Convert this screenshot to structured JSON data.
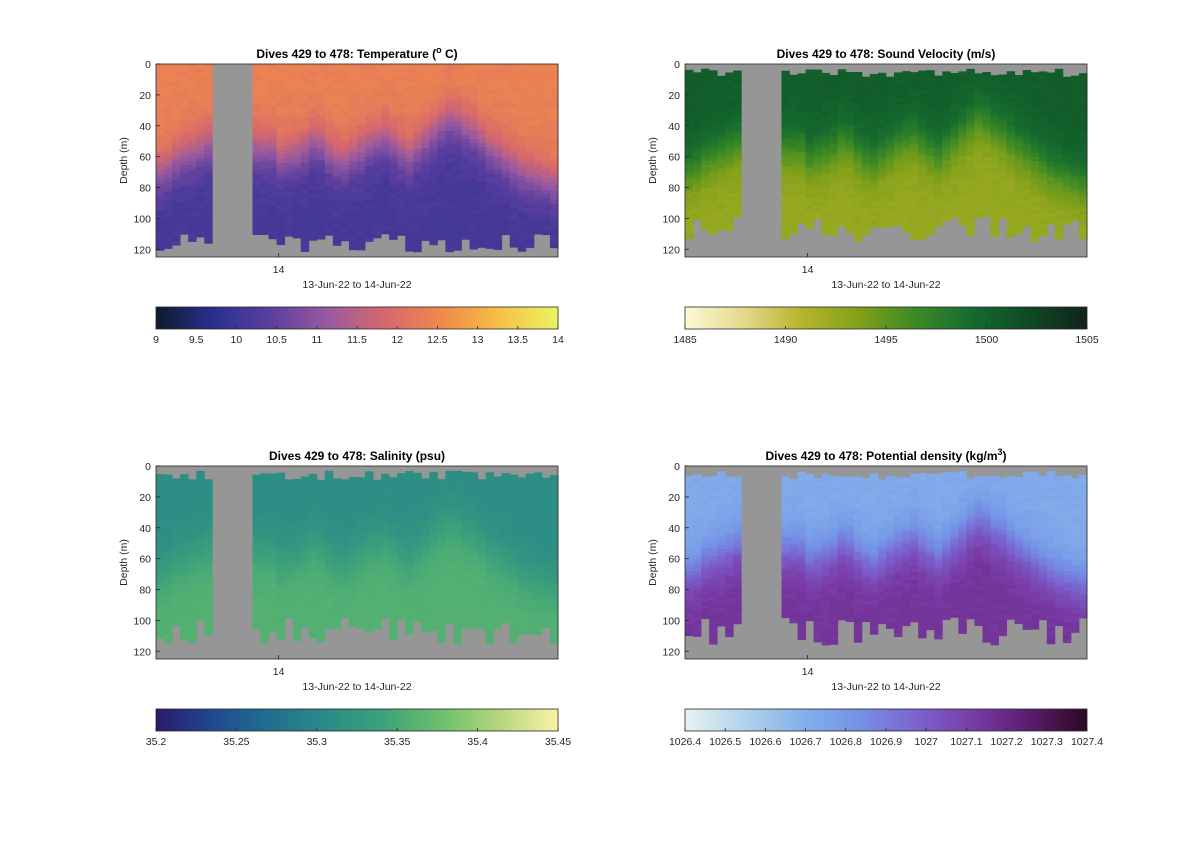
{
  "figure": {
    "panels": [
      {
        "id": "temperature",
        "title_prefix": "Dives 429 to 478: Temperature (",
        "title_sup": "o",
        "title_suffix": " C)",
        "colorbar_colors": [
          "#0d1a2c",
          "#2a2f8f",
          "#5b3f9e",
          "#9a5aa0",
          "#d7686c",
          "#f08a4b",
          "#f5c146",
          "#e9f560"
        ]
      },
      {
        "id": "sound-velocity",
        "title_prefix": "Dives 429 to 478: Sound Velocity (m/s)",
        "title_sup": "",
        "title_suffix": "",
        "colorbar_colors": [
          "#fdfbd6",
          "#e4d98f",
          "#b9b52d",
          "#83a11a",
          "#3d8a24",
          "#156b2f",
          "#0e4a24",
          "#12221a"
        ]
      },
      {
        "id": "salinity",
        "title_prefix": "Dives 429 to 478: Salinity (psu)",
        "title_sup": "",
        "title_suffix": "",
        "colorbar_colors": [
          "#2a1a6a",
          "#1f4a91",
          "#21708f",
          "#2a8c86",
          "#3ea37a",
          "#6ec16a",
          "#b6d77e",
          "#fbf2a8"
        ]
      },
      {
        "id": "potential-density",
        "title_prefix": "Dives 429 to 478: Potential density (kg/m",
        "title_sup": "3",
        "title_suffix": ")",
        "colorbar_colors": [
          "#e9f3f3",
          "#b3d3ec",
          "#85b2ea",
          "#7493e6",
          "#7a64d0",
          "#7a3ca6",
          "#5c1d6e",
          "#2b0a24"
        ]
      }
    ]
  },
  "chart_data": [
    {
      "type": "heatmap",
      "title": "Dives 429 to 478: Temperature (o C)",
      "ylabel": "Depth (m)",
      "xlabel": "13-Jun-22 to 14-Jun-22",
      "x_tick_labels": [
        "14"
      ],
      "y_tick_labels": [
        "0",
        "20",
        "40",
        "60",
        "80",
        "100",
        "120"
      ],
      "ylim": [
        0,
        125
      ],
      "y_reversed": true,
      "colorbar": {
        "min": 9,
        "max": 14,
        "tick_values": [
          9,
          9.5,
          10,
          10.5,
          11,
          11.5,
          12,
          12.5,
          13,
          13.5,
          14
        ],
        "tick_labels": [
          "9",
          "9.5",
          "10",
          "10.5",
          "11",
          "11.5",
          "12",
          "12.5",
          "13",
          "13.5",
          "14"
        ]
      },
      "surface_value": 12.4,
      "deep_value": 10.1,
      "thermocline_depth_m": [
        70,
        68,
        62,
        60,
        58,
        55,
        52,
        50,
        48,
        45,
        null,
        null,
        null,
        null,
        null,
        62,
        60,
        58,
        55,
        50,
        52,
        58,
        62,
        64,
        60,
        56,
        52,
        50,
        48,
        52,
        56,
        60,
        55,
        50,
        45,
        40,
        36,
        38,
        42,
        45,
        50,
        55,
        58,
        62,
        66,
        70,
        72,
        74,
        76,
        78
      ]
    },
    {
      "type": "heatmap",
      "title": "Dives 429 to 478: Sound Velocity (m/s)",
      "ylabel": "Depth (m)",
      "xlabel": "13-Jun-22 to 14-Jun-22",
      "x_tick_labels": [
        "14"
      ],
      "y_tick_labels": [
        "0",
        "20",
        "40",
        "60",
        "80",
        "100",
        "120"
      ],
      "ylim": [
        0,
        125
      ],
      "y_reversed": true,
      "colorbar": {
        "min": 1485,
        "max": 1505,
        "tick_values": [
          1485,
          1490,
          1495,
          1500,
          1505
        ],
        "tick_labels": [
          "1485",
          "1490",
          "1495",
          "1500",
          "1505"
        ]
      },
      "surface_value": 1500.5,
      "deep_value": 1492.5
    },
    {
      "type": "heatmap",
      "title": "Dives 429 to 478: Salinity (psu)",
      "ylabel": "Depth (m)",
      "xlabel": "13-Jun-22 to 14-Jun-22",
      "x_tick_labels": [
        "14"
      ],
      "y_tick_labels": [
        "0",
        "20",
        "40",
        "60",
        "80",
        "100",
        "120"
      ],
      "ylim": [
        0,
        125
      ],
      "y_reversed": true,
      "colorbar": {
        "min": 35.2,
        "max": 35.45,
        "tick_values": [
          35.2,
          35.25,
          35.3,
          35.35,
          35.4,
          35.45
        ],
        "tick_labels": [
          "35.2",
          "35.25",
          "35.3",
          "35.35",
          "35.4",
          "35.45"
        ]
      },
      "surface_value": 35.31,
      "deep_value": 35.36
    },
    {
      "type": "heatmap",
      "title": "Dives 429 to 478: Potential density (kg/m3)",
      "ylabel": "Depth (m)",
      "xlabel": "13-Jun-22 to 14-Jun-22",
      "x_tick_labels": [
        "14"
      ],
      "y_tick_labels": [
        "0",
        "20",
        "40",
        "60",
        "80",
        "100",
        "120"
      ],
      "ylim": [
        0,
        125
      ],
      "y_reversed": true,
      "colorbar": {
        "min": 1026.4,
        "max": 1027.4,
        "tick_values": [
          1026.4,
          1026.5,
          1026.6,
          1026.7,
          1026.8,
          1026.9,
          1027,
          1027.1,
          1027.2,
          1027.3,
          1027.4
        ],
        "tick_labels": [
          "1026.4",
          "1026.5",
          "1026.6",
          "1026.7",
          "1026.8",
          "1026.9",
          "1027",
          "1027.1",
          "1027.2",
          "1027.3",
          "1027.4"
        ]
      },
      "surface_value": 1026.72,
      "deep_value": 1027.15
    }
  ]
}
